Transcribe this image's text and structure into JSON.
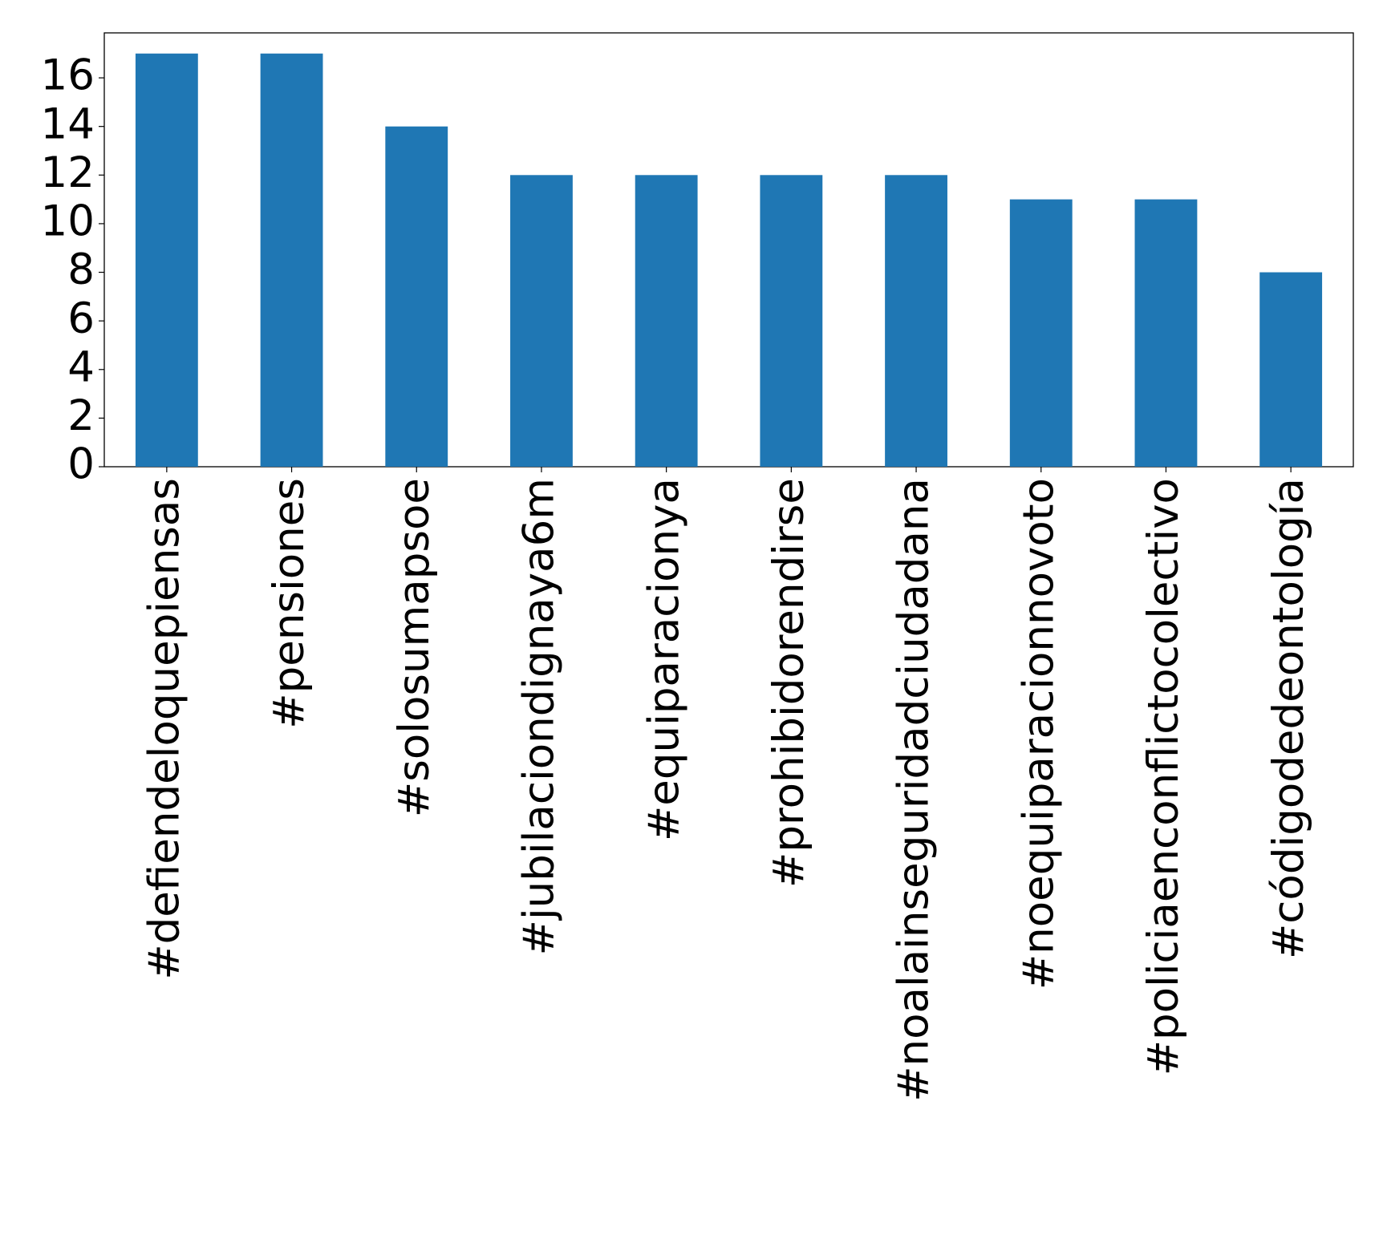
{
  "chart_data": {
    "type": "bar",
    "categories": [
      "#defiendeloquepiensas",
      "#pensiones",
      "#solosumapsoe",
      "#jubilaciondignaya6m",
      "#equiparacionya",
      "#prohibidorendirse",
      "#noalainseguridadciudadana",
      "#noequiparacionnovoto",
      "#policiaenconflictocolectivo",
      "#códigodedeontología"
    ],
    "values": [
      17,
      17,
      14,
      12,
      12,
      12,
      12,
      11,
      11,
      8
    ],
    "color": "#1f77b4",
    "ylim": [
      0,
      17.85
    ],
    "yticks": [
      0,
      2,
      4,
      6,
      8,
      10,
      12,
      14,
      16
    ],
    "grid": false
  }
}
